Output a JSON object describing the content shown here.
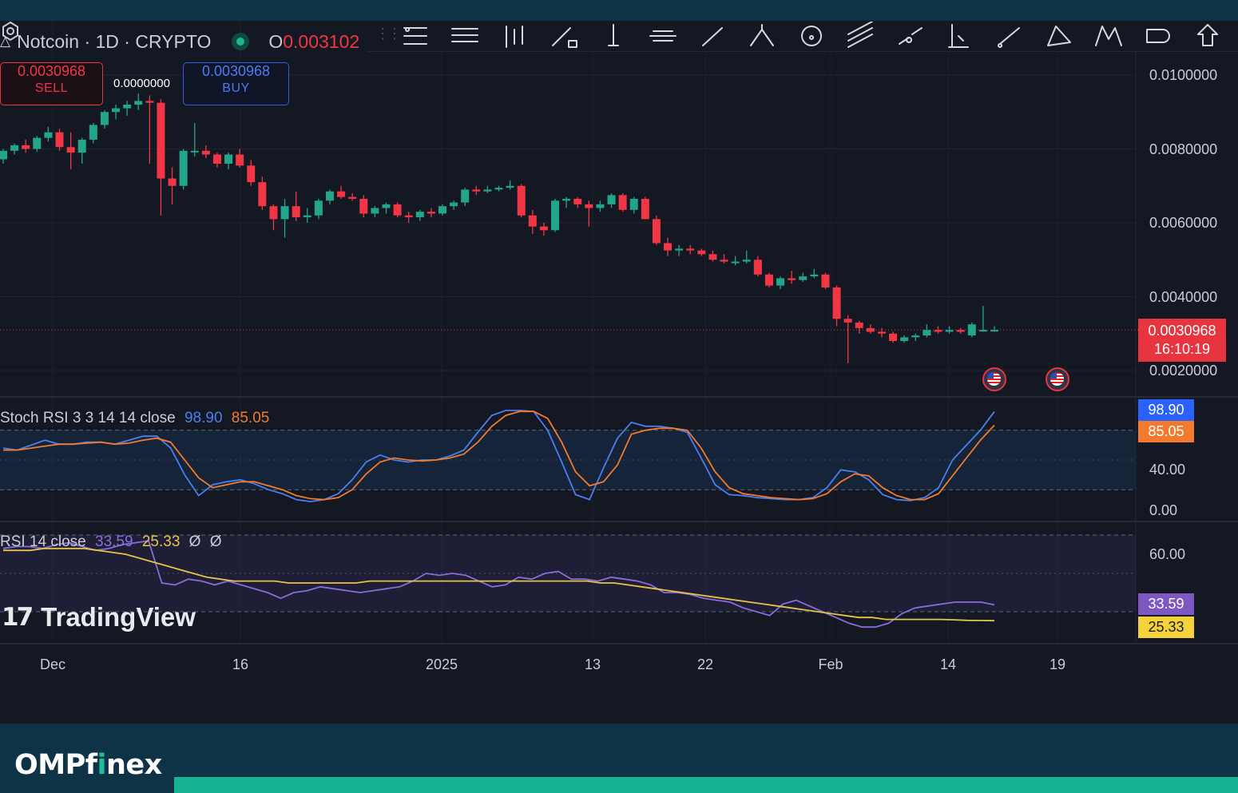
{
  "symbol": {
    "title": "Notcoin · 1D · CRYPTO",
    "open_label": "O",
    "open_value": "0.003102"
  },
  "trade": {
    "sell_price": "0.0030968",
    "sell_label": "SELL",
    "buy_price": "0.0030968",
    "buy_label": "BUY",
    "spread": "0.0000000"
  },
  "toolbar": {
    "icons": [
      "trend-lines-icon",
      "fib-icon",
      "pattern-icon",
      "measure-icon",
      "vertical-line-icon",
      "horizontal-ray-icon",
      "ray-icon",
      "pitchfork-icon",
      "cycle-icon",
      "parallel-channel-icon",
      "regression-icon",
      "anchored-line-icon",
      "info-line-icon",
      "triangle-pattern-icon",
      "xabcd-icon",
      "shapes-icon",
      "arrow-up-icon"
    ]
  },
  "price_axis": {
    "labels": [
      "0.0100000",
      "0.0080000",
      "0.0060000",
      "0.0040000",
      "0.0020000"
    ]
  },
  "last_price": {
    "value": "0.0030968",
    "countdown": "16:10:19",
    "color": "#e8343f"
  },
  "stoch": {
    "label": "Stoch RSI 3 3 14 14 close",
    "k_value": "98.90",
    "d_value": "85.05",
    "axis": [
      "40.00",
      "0.00"
    ],
    "k_color": "#4a7ef0",
    "d_color": "#f27a2e"
  },
  "rsi": {
    "label": "RSI 14 close",
    "value": "33.59",
    "ma_value": "25.33",
    "extra1": "Ø",
    "extra2": "Ø",
    "axis": [
      "60.00"
    ],
    "rsi_color": "#8a6cd8",
    "ma_color": "#e6c34a"
  },
  "watermark": "TradingView",
  "dates": [
    "Dec",
    "16",
    "2025",
    "13",
    "22",
    "Feb",
    "14",
    "19"
  ],
  "brand": {
    "name_a": "OMPf",
    "name_b": "i",
    "name_c": "nex"
  },
  "colors": {
    "up": "#22a58a",
    "down": "#f23645",
    "bg": "#141822"
  },
  "chart_data": {
    "type": "candlestick",
    "title": "Notcoin · 1D · CRYPTO",
    "y_range": [
      0.0015,
      0.0105
    ],
    "candles": [
      {
        "o": 0.00772,
        "h": 0.008,
        "l": 0.0076,
        "c": 0.00795
      },
      {
        "o": 0.00795,
        "h": 0.00815,
        "l": 0.00785,
        "c": 0.0081
      },
      {
        "o": 0.0081,
        "h": 0.00825,
        "l": 0.0079,
        "c": 0.008
      },
      {
        "o": 0.008,
        "h": 0.00835,
        "l": 0.00792,
        "c": 0.0083
      },
      {
        "o": 0.0083,
        "h": 0.0086,
        "l": 0.0082,
        "c": 0.00845
      },
      {
        "o": 0.00845,
        "h": 0.00855,
        "l": 0.00795,
        "c": 0.00805
      },
      {
        "o": 0.00805,
        "h": 0.00845,
        "l": 0.00745,
        "c": 0.0079
      },
      {
        "o": 0.0079,
        "h": 0.0083,
        "l": 0.0076,
        "c": 0.00825
      },
      {
        "o": 0.00825,
        "h": 0.0087,
        "l": 0.00815,
        "c": 0.00865
      },
      {
        "o": 0.00865,
        "h": 0.00905,
        "l": 0.00855,
        "c": 0.009
      },
      {
        "o": 0.009,
        "h": 0.0092,
        "l": 0.0088,
        "c": 0.0091
      },
      {
        "o": 0.0091,
        "h": 0.0093,
        "l": 0.0089,
        "c": 0.0092
      },
      {
        "o": 0.0092,
        "h": 0.0095,
        "l": 0.00905,
        "c": 0.0093
      },
      {
        "o": 0.0093,
        "h": 0.00945,
        "l": 0.0076,
        "c": 0.00925
      },
      {
        "o": 0.00925,
        "h": 0.00935,
        "l": 0.0062,
        "c": 0.0072
      },
      {
        "o": 0.0072,
        "h": 0.0075,
        "l": 0.0065,
        "c": 0.007
      },
      {
        "o": 0.007,
        "h": 0.008,
        "l": 0.0069,
        "c": 0.00795
      },
      {
        "o": 0.00795,
        "h": 0.0087,
        "l": 0.0078,
        "c": 0.00795
      },
      {
        "o": 0.00795,
        "h": 0.0081,
        "l": 0.00775,
        "c": 0.00785
      },
      {
        "o": 0.00785,
        "h": 0.0079,
        "l": 0.0075,
        "c": 0.0076
      },
      {
        "o": 0.0076,
        "h": 0.0079,
        "l": 0.00745,
        "c": 0.00785
      },
      {
        "o": 0.00785,
        "h": 0.008,
        "l": 0.0075,
        "c": 0.00755
      },
      {
        "o": 0.00755,
        "h": 0.0077,
        "l": 0.007,
        "c": 0.0071
      },
      {
        "o": 0.0071,
        "h": 0.00725,
        "l": 0.00635,
        "c": 0.00645
      },
      {
        "o": 0.00645,
        "h": 0.0065,
        "l": 0.0058,
        "c": 0.0061
      },
      {
        "o": 0.0061,
        "h": 0.00665,
        "l": 0.0056,
        "c": 0.00645
      },
      {
        "o": 0.00645,
        "h": 0.00685,
        "l": 0.00605,
        "c": 0.00615
      },
      {
        "o": 0.00615,
        "h": 0.0064,
        "l": 0.006,
        "c": 0.0062
      },
      {
        "o": 0.0062,
        "h": 0.00665,
        "l": 0.0061,
        "c": 0.0066
      },
      {
        "o": 0.0066,
        "h": 0.0069,
        "l": 0.0065,
        "c": 0.00685
      },
      {
        "o": 0.00685,
        "h": 0.007,
        "l": 0.00665,
        "c": 0.0067
      },
      {
        "o": 0.0067,
        "h": 0.0068,
        "l": 0.0066,
        "c": 0.00665
      },
      {
        "o": 0.00665,
        "h": 0.00675,
        "l": 0.00615,
        "c": 0.00625
      },
      {
        "o": 0.00625,
        "h": 0.00645,
        "l": 0.00615,
        "c": 0.0064
      },
      {
        "o": 0.0064,
        "h": 0.00655,
        "l": 0.00625,
        "c": 0.0065
      },
      {
        "o": 0.0065,
        "h": 0.00655,
        "l": 0.00615,
        "c": 0.0062
      },
      {
        "o": 0.0062,
        "h": 0.0063,
        "l": 0.006,
        "c": 0.00615
      },
      {
        "o": 0.00615,
        "h": 0.00635,
        "l": 0.00605,
        "c": 0.0063
      },
      {
        "o": 0.0063,
        "h": 0.0064,
        "l": 0.00615,
        "c": 0.00625
      },
      {
        "o": 0.00625,
        "h": 0.0065,
        "l": 0.0062,
        "c": 0.00645
      },
      {
        "o": 0.00645,
        "h": 0.0066,
        "l": 0.00635,
        "c": 0.00655
      },
      {
        "o": 0.00655,
        "h": 0.00695,
        "l": 0.00645,
        "c": 0.0069
      },
      {
        "o": 0.0069,
        "h": 0.007,
        "l": 0.00675,
        "c": 0.00685
      },
      {
        "o": 0.00685,
        "h": 0.007,
        "l": 0.0068,
        "c": 0.0069
      },
      {
        "o": 0.0069,
        "h": 0.007,
        "l": 0.00685,
        "c": 0.00695
      },
      {
        "o": 0.00695,
        "h": 0.00715,
        "l": 0.0069,
        "c": 0.007
      },
      {
        "o": 0.007,
        "h": 0.00705,
        "l": 0.00615,
        "c": 0.0062
      },
      {
        "o": 0.0062,
        "h": 0.00635,
        "l": 0.0057,
        "c": 0.0059
      },
      {
        "o": 0.0059,
        "h": 0.006,
        "l": 0.00565,
        "c": 0.0058
      },
      {
        "o": 0.0058,
        "h": 0.00665,
        "l": 0.00575,
        "c": 0.0066
      },
      {
        "o": 0.0066,
        "h": 0.0067,
        "l": 0.0064,
        "c": 0.00665
      },
      {
        "o": 0.00665,
        "h": 0.0067,
        "l": 0.0064,
        "c": 0.0065
      },
      {
        "o": 0.0065,
        "h": 0.0066,
        "l": 0.0059,
        "c": 0.0064
      },
      {
        "o": 0.0064,
        "h": 0.0066,
        "l": 0.0063,
        "c": 0.0065
      },
      {
        "o": 0.0065,
        "h": 0.0068,
        "l": 0.0064,
        "c": 0.00675
      },
      {
        "o": 0.00675,
        "h": 0.0068,
        "l": 0.0063,
        "c": 0.00635
      },
      {
        "o": 0.00635,
        "h": 0.0067,
        "l": 0.00625,
        "c": 0.00665
      },
      {
        "o": 0.00665,
        "h": 0.0067,
        "l": 0.0061,
        "c": 0.0061
      },
      {
        "o": 0.0061,
        "h": 0.0062,
        "l": 0.0054,
        "c": 0.00545
      },
      {
        "o": 0.00545,
        "h": 0.0056,
        "l": 0.0051,
        "c": 0.00525
      },
      {
        "o": 0.00525,
        "h": 0.0054,
        "l": 0.0051,
        "c": 0.0053
      },
      {
        "o": 0.0053,
        "h": 0.0054,
        "l": 0.00515,
        "c": 0.00525
      },
      {
        "o": 0.00525,
        "h": 0.0053,
        "l": 0.0051,
        "c": 0.00515
      },
      {
        "o": 0.00515,
        "h": 0.00525,
        "l": 0.00495,
        "c": 0.005
      },
      {
        "o": 0.005,
        "h": 0.00515,
        "l": 0.0049,
        "c": 0.00495
      },
      {
        "o": 0.00495,
        "h": 0.0051,
        "l": 0.00485,
        "c": 0.00495
      },
      {
        "o": 0.00495,
        "h": 0.00525,
        "l": 0.0049,
        "c": 0.005
      },
      {
        "o": 0.005,
        "h": 0.0051,
        "l": 0.00455,
        "c": 0.0046
      },
      {
        "o": 0.0046,
        "h": 0.00465,
        "l": 0.00425,
        "c": 0.0043
      },
      {
        "o": 0.0043,
        "h": 0.00455,
        "l": 0.0042,
        "c": 0.0045
      },
      {
        "o": 0.0045,
        "h": 0.0047,
        "l": 0.00435,
        "c": 0.00445
      },
      {
        "o": 0.00445,
        "h": 0.00465,
        "l": 0.0044,
        "c": 0.00455
      },
      {
        "o": 0.00455,
        "h": 0.00475,
        "l": 0.0045,
        "c": 0.0046
      },
      {
        "o": 0.0046,
        "h": 0.00465,
        "l": 0.0042,
        "c": 0.00425
      },
      {
        "o": 0.00425,
        "h": 0.0043,
        "l": 0.0032,
        "c": 0.0034
      },
      {
        "o": 0.0034,
        "h": 0.0035,
        "l": 0.0022,
        "c": 0.0033
      },
      {
        "o": 0.0033,
        "h": 0.00335,
        "l": 0.003,
        "c": 0.00315
      },
      {
        "o": 0.00315,
        "h": 0.00325,
        "l": 0.003,
        "c": 0.00305
      },
      {
        "o": 0.00305,
        "h": 0.00315,
        "l": 0.0029,
        "c": 0.003
      },
      {
        "o": 0.003,
        "h": 0.00305,
        "l": 0.00275,
        "c": 0.0028
      },
      {
        "o": 0.0028,
        "h": 0.00295,
        "l": 0.00275,
        "c": 0.0029
      },
      {
        "o": 0.0029,
        "h": 0.003,
        "l": 0.0028,
        "c": 0.00295
      },
      {
        "o": 0.00295,
        "h": 0.00325,
        "l": 0.0029,
        "c": 0.0031
      },
      {
        "o": 0.0031,
        "h": 0.0032,
        "l": 0.003,
        "c": 0.00305
      },
      {
        "o": 0.00305,
        "h": 0.0032,
        "l": 0.003,
        "c": 0.0031
      },
      {
        "o": 0.0031,
        "h": 0.00315,
        "l": 0.003,
        "c": 0.00305
      },
      {
        "o": 0.00295,
        "h": 0.0033,
        "l": 0.0029,
        "c": 0.00325
      },
      {
        "o": 0.0031,
        "h": 0.00375,
        "l": 0.00305,
        "c": 0.0031
      },
      {
        "o": 0.0031,
        "h": 0.0032,
        "l": 0.00305,
        "c": 0.0031
      }
    ],
    "stoch_rsi": {
      "k": [
        62,
        60,
        65,
        70,
        66,
        66,
        68,
        68,
        66,
        70,
        74,
        74,
        62,
        35,
        14,
        25,
        28,
        30,
        26,
        20,
        16,
        10,
        8,
        10,
        16,
        30,
        48,
        55,
        50,
        48,
        50,
        50,
        54,
        60,
        78,
        95,
        100,
        100,
        99,
        80,
        48,
        15,
        10,
        42,
        72,
        88,
        84,
        84,
        82,
        78,
        52,
        25,
        15,
        14,
        12,
        11,
        10,
        10,
        12,
        22,
        40,
        38,
        30,
        15,
        10,
        9,
        12,
        22,
        50,
        65,
        80,
        98.9
      ],
      "d": [
        60,
        60,
        62,
        64,
        66,
        66,
        67,
        68,
        66,
        67,
        70,
        72,
        68,
        50,
        32,
        22,
        25,
        28,
        28,
        24,
        20,
        14,
        11,
        10,
        12,
        20,
        36,
        48,
        52,
        50,
        49,
        50,
        52,
        56,
        68,
        84,
        95,
        99,
        99,
        92,
        68,
        38,
        24,
        28,
        45,
        76,
        80,
        82,
        82,
        80,
        62,
        38,
        22,
        16,
        14,
        12,
        11,
        10,
        11,
        16,
        28,
        36,
        34,
        22,
        14,
        10,
        10,
        16,
        34,
        52,
        70,
        85.05
      ]
    },
    "rsi": {
      "values": [
        63,
        64,
        64,
        63,
        65,
        66,
        64,
        62,
        63,
        65,
        66,
        67,
        45,
        44,
        47,
        46,
        44,
        46,
        44,
        42,
        40,
        37,
        40,
        41,
        43,
        42,
        41,
        40,
        41,
        42,
        43,
        46,
        50,
        49,
        50,
        49,
        46,
        43,
        44,
        48,
        47,
        50,
        51,
        47,
        47,
        46,
        48,
        47,
        46,
        44,
        40,
        40,
        39,
        37,
        36,
        35,
        32,
        30,
        28,
        34,
        36,
        33,
        30,
        27,
        24,
        22,
        22,
        24,
        29,
        32,
        33,
        34,
        35,
        35,
        35,
        33.59
      ],
      "ma": [
        62,
        62,
        62,
        63,
        63,
        63,
        63,
        62,
        61,
        60,
        58,
        56,
        54,
        52,
        50,
        48,
        47,
        46,
        46,
        46,
        46,
        45,
        45,
        45,
        45,
        45,
        45,
        46,
        46,
        46,
        46,
        46,
        46,
        46,
        46,
        46,
        46,
        46,
        46,
        46,
        46,
        46,
        46,
        46,
        45,
        45,
        44,
        43,
        42,
        41,
        40,
        39,
        38,
        37,
        36,
        35,
        34,
        33,
        32,
        31,
        30,
        29,
        28,
        27,
        27,
        26,
        26,
        26,
        26,
        26,
        25.8,
        25.5,
        25.4,
        25.33
      ]
    }
  }
}
